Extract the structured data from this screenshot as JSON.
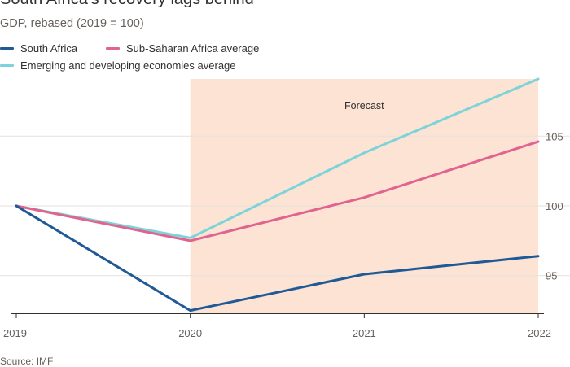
{
  "header": {
    "title": "South Africa's recovery lags behind",
    "subtitle": "GDP, rebased (2019 = 100)"
  },
  "legend": [
    {
      "label": "South Africa",
      "color": "#1f5a96"
    },
    {
      "label": "Sub-Saharan Africa average",
      "color": "#e0648f"
    },
    {
      "label": "Emerging and developing economies average",
      "color": "#7dd4d8"
    }
  ],
  "source": "Source: IMF",
  "chart_data": {
    "type": "line",
    "x": [
      "2019",
      "2020",
      "2021",
      "2022"
    ],
    "series": [
      {
        "name": "South Africa",
        "color": "#1f5a96",
        "values": [
          100,
          92.5,
          95.1,
          96.4
        ]
      },
      {
        "name": "Sub-Saharan Africa average",
        "color": "#e0648f",
        "values": [
          100,
          97.5,
          100.6,
          104.6
        ]
      },
      {
        "name": "Emerging and developing economies average",
        "color": "#7dd4d8",
        "values": [
          100,
          97.7,
          103.8,
          109.1
        ]
      }
    ],
    "ylim": [
      92.3,
      109.1
    ],
    "yticks": [
      95,
      100,
      105
    ],
    "y_axis_position": "right",
    "grid": true,
    "forecast": {
      "label": "Forecast",
      "from": "2020",
      "to": "2022",
      "color": "#fce3d4"
    }
  }
}
